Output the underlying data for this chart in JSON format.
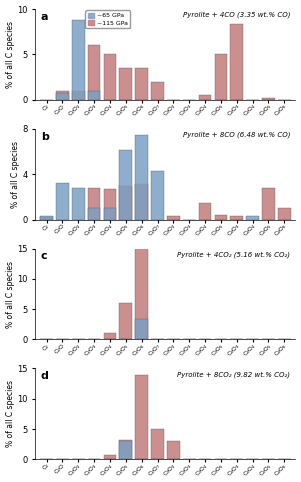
{
  "subplots": [
    {
      "label": "a",
      "title": "Pyrolite + 4CO (3.35 wt.% CO)",
      "ylim": [
        0,
        10
      ],
      "yticks": [
        0,
        5,
        10
      ],
      "categories": [
        "C₂",
        "C₂O",
        "C₂O₂",
        "C₂O₃",
        "C₂O₄",
        "C₂O₅",
        "C₂O₆",
        "C₂O₇",
        "C₃O₂",
        "C₃O₃",
        "C₃O₄",
        "C₃O₅",
        "C₄O₃",
        "C₄O₄",
        "C₄O₅",
        "C₄O₆"
      ],
      "blue": [
        0,
        0.7,
        8.8,
        1.0,
        0,
        0,
        0,
        0,
        0,
        0,
        0,
        0,
        0,
        0,
        0,
        0
      ],
      "red": [
        0,
        1.0,
        1.0,
        6.0,
        5.0,
        3.5,
        3.5,
        2.0,
        0,
        0,
        0.5,
        5.0,
        8.3,
        0,
        0.2,
        0
      ]
    },
    {
      "label": "b",
      "title": "Pyrolite + 8CO (6.48 wt.% CO)",
      "ylim": [
        0,
        8
      ],
      "yticks": [
        0,
        4,
        8
      ],
      "categories": [
        "C₂",
        "C₂O",
        "C₂O₂",
        "C₂O₃",
        "C₂O₄",
        "C₂O₅",
        "C₂O₆",
        "C₂O₇",
        "C₃O₂",
        "C₃O₃",
        "C₃O₄",
        "C₃O₅",
        "C₄O₃",
        "C₄O₄",
        "C₄O₅",
        "C₄O₆"
      ],
      "blue": [
        0.3,
        3.2,
        2.8,
        1.0,
        1.0,
        6.1,
        7.5,
        4.3,
        0,
        0,
        0,
        0,
        0,
        0.3,
        0,
        0
      ],
      "red": [
        0.2,
        0.0,
        0.0,
        2.8,
        2.7,
        3.0,
        3.1,
        0,
        0.3,
        0,
        1.5,
        0.4,
        0.3,
        0,
        2.8,
        1.0
      ]
    },
    {
      "label": "c",
      "title": "Pyrolite + 4CO₂ (5.16 wt.% CO₂)",
      "ylim": [
        0,
        15
      ],
      "yticks": [
        0,
        5,
        10,
        15
      ],
      "categories": [
        "C₂",
        "C₂O",
        "C₂O₂",
        "C₂O₃",
        "C₂O₄",
        "C₂O₅",
        "C₂O₆",
        "C₂O₇",
        "C₃O₂",
        "C₃O₃",
        "C₃O₄",
        "C₃O₅",
        "C₄O₃",
        "C₄O₄",
        "C₄O₅",
        "C₄O₆"
      ],
      "blue": [
        0,
        0,
        0,
        0,
        0,
        0,
        3.3,
        0,
        0,
        0,
        0,
        0,
        0,
        0,
        0,
        0
      ],
      "red": [
        0,
        0,
        0,
        0,
        1.0,
        6.0,
        15.3,
        0,
        0,
        0,
        0,
        0,
        0,
        0,
        0,
        0
      ]
    },
    {
      "label": "d",
      "title": "Pyrolite + 8CO₂ (9.82 wt.% CO₂)",
      "ylim": [
        0,
        15
      ],
      "yticks": [
        0,
        5,
        10,
        15
      ],
      "categories": [
        "C₂",
        "C₂O",
        "C₂O₂",
        "C₂O₃",
        "C₂O₄",
        "C₂O₅",
        "C₂O₆",
        "C₂O₇",
        "C₃O₂",
        "C₃O₃",
        "C₃O₄",
        "C₃O₅",
        "C₄O₃",
        "C₄O₄",
        "C₄O₅",
        "C₄O₆"
      ],
      "blue": [
        0,
        0,
        0,
        0,
        0,
        3.1,
        0,
        0,
        0,
        0,
        0,
        0,
        0,
        0,
        0,
        0
      ],
      "red": [
        0,
        0,
        0,
        0,
        0.7,
        3.2,
        14.0,
        5.0,
        3.0,
        0,
        0,
        0,
        0,
        0,
        0,
        0
      ]
    }
  ],
  "blue_color": "#7b9fc4",
  "red_color": "#c47b7b",
  "blue_label": "~65 GPa",
  "red_label": "~115 GPa",
  "ylabel": "% of all C species",
  "bar_width": 0.8
}
